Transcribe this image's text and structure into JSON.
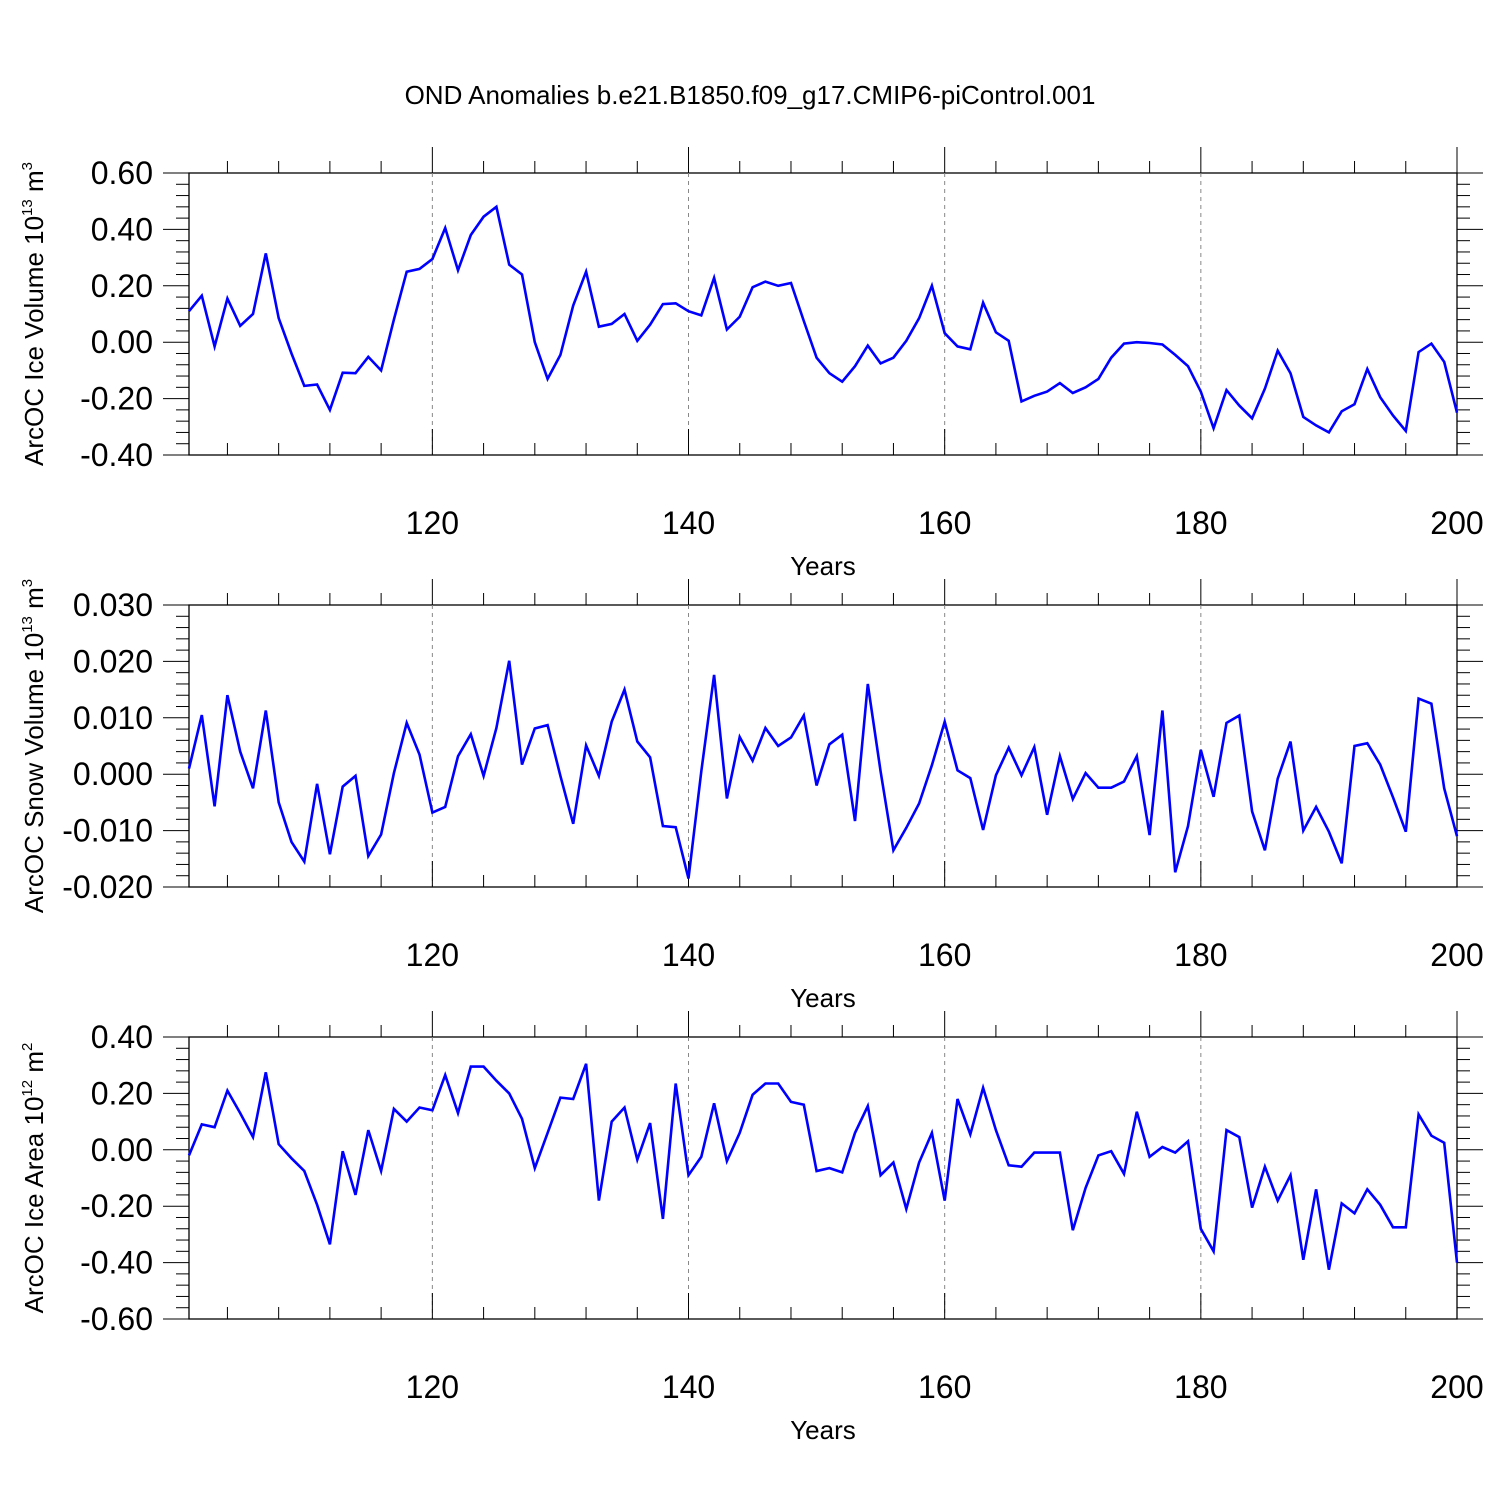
{
  "title": "OND Anomalies b.e21.B1850.f09_g17.CMIP6-piControl.001",
  "line_color": "#0000ff",
  "chart_data": [
    {
      "type": "line",
      "name": "ice-volume",
      "ylabel_parts": {
        "main": "ArcOC Ice Volume 10",
        "exp": "13",
        "unit": " m",
        "unit_exp": "3"
      },
      "xlabel": "Years",
      "xlim": [
        101,
        200
      ],
      "ylim": [
        -0.4,
        0.6
      ],
      "x_ticks": [
        "120",
        "140",
        "160",
        "180",
        "200"
      ],
      "y_ticks": [
        "0.60",
        "0.40",
        "0.20",
        "0.00",
        "-0.20",
        "-0.40"
      ],
      "y_tick_values": [
        0.6,
        0.4,
        0.2,
        0.0,
        -0.2,
        -0.4
      ],
      "grid_x": [
        120,
        140,
        160,
        180
      ],
      "x_start": 101,
      "values": [
        0.11,
        0.165,
        -0.015,
        0.155,
        0.058,
        0.1,
        0.315,
        0.085,
        -0.04,
        -0.155,
        -0.15,
        -0.24,
        -0.108,
        -0.11,
        -0.052,
        -0.1,
        0.08,
        0.25,
        0.26,
        0.295,
        0.405,
        0.255,
        0.38,
        0.445,
        0.48,
        0.275,
        0.24,
        0.0,
        -0.13,
        -0.045,
        0.13,
        0.25,
        0.055,
        0.065,
        0.1,
        0.005,
        0.062,
        0.135,
        0.138,
        0.11,
        0.095,
        0.228,
        0.045,
        0.09,
        0.195,
        0.215,
        0.2,
        0.21,
        0.075,
        -0.055,
        -0.11,
        -0.14,
        -0.085,
        -0.012,
        -0.075,
        -0.055,
        0.005,
        0.085,
        0.2,
        0.032,
        -0.015,
        -0.025,
        0.14,
        0.035,
        0.005,
        -0.21,
        -0.19,
        -0.175,
        -0.145,
        -0.18,
        -0.16,
        -0.13,
        -0.055,
        -0.005,
        0.0,
        -0.003,
        -0.008,
        -0.045,
        -0.085,
        -0.175,
        -0.305,
        -0.17,
        -0.225,
        -0.27,
        -0.165,
        -0.03,
        -0.11,
        -0.265,
        -0.295,
        -0.32,
        -0.245,
        -0.22,
        -0.095,
        -0.195,
        -0.26,
        -0.315,
        -0.035,
        -0.005,
        -0.07,
        -0.25
      ]
    },
    {
      "type": "line",
      "name": "snow-volume",
      "ylabel_parts": {
        "main": "ArcOC Snow Volume 10",
        "exp": "13",
        "unit": " m",
        "unit_exp": "3"
      },
      "xlabel": "Years",
      "xlim": [
        101,
        200
      ],
      "ylim": [
        -0.02,
        0.03
      ],
      "x_ticks": [
        "120",
        "140",
        "160",
        "180",
        "200"
      ],
      "y_ticks": [
        "0.030",
        "0.020",
        "0.010",
        "0.000",
        "-0.010",
        "-0.020"
      ],
      "y_tick_values": [
        0.03,
        0.02,
        0.01,
        0.0,
        -0.01,
        -0.02
      ],
      "grid_x": [
        120,
        140,
        160,
        180
      ],
      "x_start": 101,
      "values": [
        0.001,
        0.0105,
        -0.0057,
        0.014,
        0.004,
        -0.0025,
        0.0113,
        -0.005,
        -0.012,
        -0.0155,
        -0.0017,
        -0.0142,
        -0.0022,
        -0.0003,
        -0.0145,
        -0.0107,
        0.0002,
        0.0091,
        0.0035,
        -0.0068,
        -0.0058,
        0.0032,
        0.0071,
        -0.0003,
        0.0082,
        0.0201,
        0.0017,
        0.0081,
        0.0087,
        -0.0003,
        -0.0088,
        0.0051,
        -0.0003,
        0.0093,
        0.015,
        0.0058,
        0.003,
        -0.0092,
        -0.0094,
        -0.0185,
        0.0005,
        0.0176,
        -0.0043,
        0.0066,
        0.0024,
        0.0082,
        0.005,
        0.0065,
        0.0104,
        -0.002,
        0.0053,
        0.007,
        -0.0083,
        0.016,
        0.0005,
        -0.0135,
        -0.0095,
        -0.0052,
        0.0016,
        0.0093,
        0.0007,
        -0.0007,
        -0.0099,
        -0.0002,
        0.0047,
        -0.0002,
        0.0048,
        -0.0072,
        0.0032,
        -0.0044,
        0.0002,
        -0.0024,
        -0.0024,
        -0.0013,
        0.0032,
        -0.0108,
        0.0113,
        -0.0174,
        -0.0092,
        0.0043,
        -0.004,
        0.0091,
        0.0104,
        -0.0066,
        -0.0135,
        -0.0008,
        0.0058,
        -0.01,
        -0.0058,
        -0.0102,
        -0.0158,
        0.005,
        0.0055,
        0.0017,
        -0.0041,
        -0.0102,
        0.0134,
        0.0125,
        -0.0025,
        -0.011
      ]
    },
    {
      "type": "line",
      "name": "ice-area",
      "ylabel_parts": {
        "main": "ArcOC Ice Area 10",
        "exp": "12",
        "unit": " m",
        "unit_exp": "2"
      },
      "xlabel": "Years",
      "xlim": [
        101,
        200
      ],
      "ylim": [
        -0.6,
        0.4
      ],
      "x_ticks": [
        "120",
        "140",
        "160",
        "180",
        "200"
      ],
      "y_ticks": [
        "0.40",
        "0.20",
        "0.00",
        "-0.20",
        "-0.40",
        "-0.60"
      ],
      "y_tick_values": [
        0.4,
        0.2,
        0.0,
        -0.2,
        -0.4,
        -0.6
      ],
      "grid_x": [
        120,
        140,
        160,
        180
      ],
      "x_start": 101,
      "values": [
        -0.02,
        0.09,
        0.08,
        0.21,
        0.13,
        0.045,
        0.275,
        0.02,
        -0.03,
        -0.075,
        -0.195,
        -0.335,
        -0.005,
        -0.16,
        0.07,
        -0.075,
        0.145,
        0.1,
        0.15,
        0.14,
        0.265,
        0.13,
        0.295,
        0.295,
        0.245,
        0.2,
        0.11,
        -0.065,
        0.06,
        0.185,
        0.18,
        0.305,
        -0.18,
        0.1,
        0.15,
        -0.035,
        0.095,
        -0.245,
        0.235,
        -0.09,
        -0.025,
        0.165,
        -0.04,
        0.06,
        0.195,
        0.235,
        0.235,
        0.17,
        0.16,
        -0.075,
        -0.065,
        -0.08,
        0.06,
        0.155,
        -0.09,
        -0.045,
        -0.21,
        -0.045,
        0.06,
        -0.18,
        0.18,
        0.055,
        0.22,
        0.07,
        -0.055,
        -0.06,
        -0.01,
        -0.01,
        -0.01,
        -0.285,
        -0.135,
        -0.02,
        -0.005,
        -0.085,
        0.135,
        -0.025,
        0.01,
        -0.01,
        0.03,
        -0.28,
        -0.36,
        0.07,
        0.045,
        -0.205,
        -0.06,
        -0.18,
        -0.09,
        -0.39,
        -0.14,
        -0.425,
        -0.19,
        -0.225,
        -0.14,
        -0.195,
        -0.275,
        -0.275,
        0.125,
        0.05,
        0.025,
        -0.4
      ]
    }
  ]
}
